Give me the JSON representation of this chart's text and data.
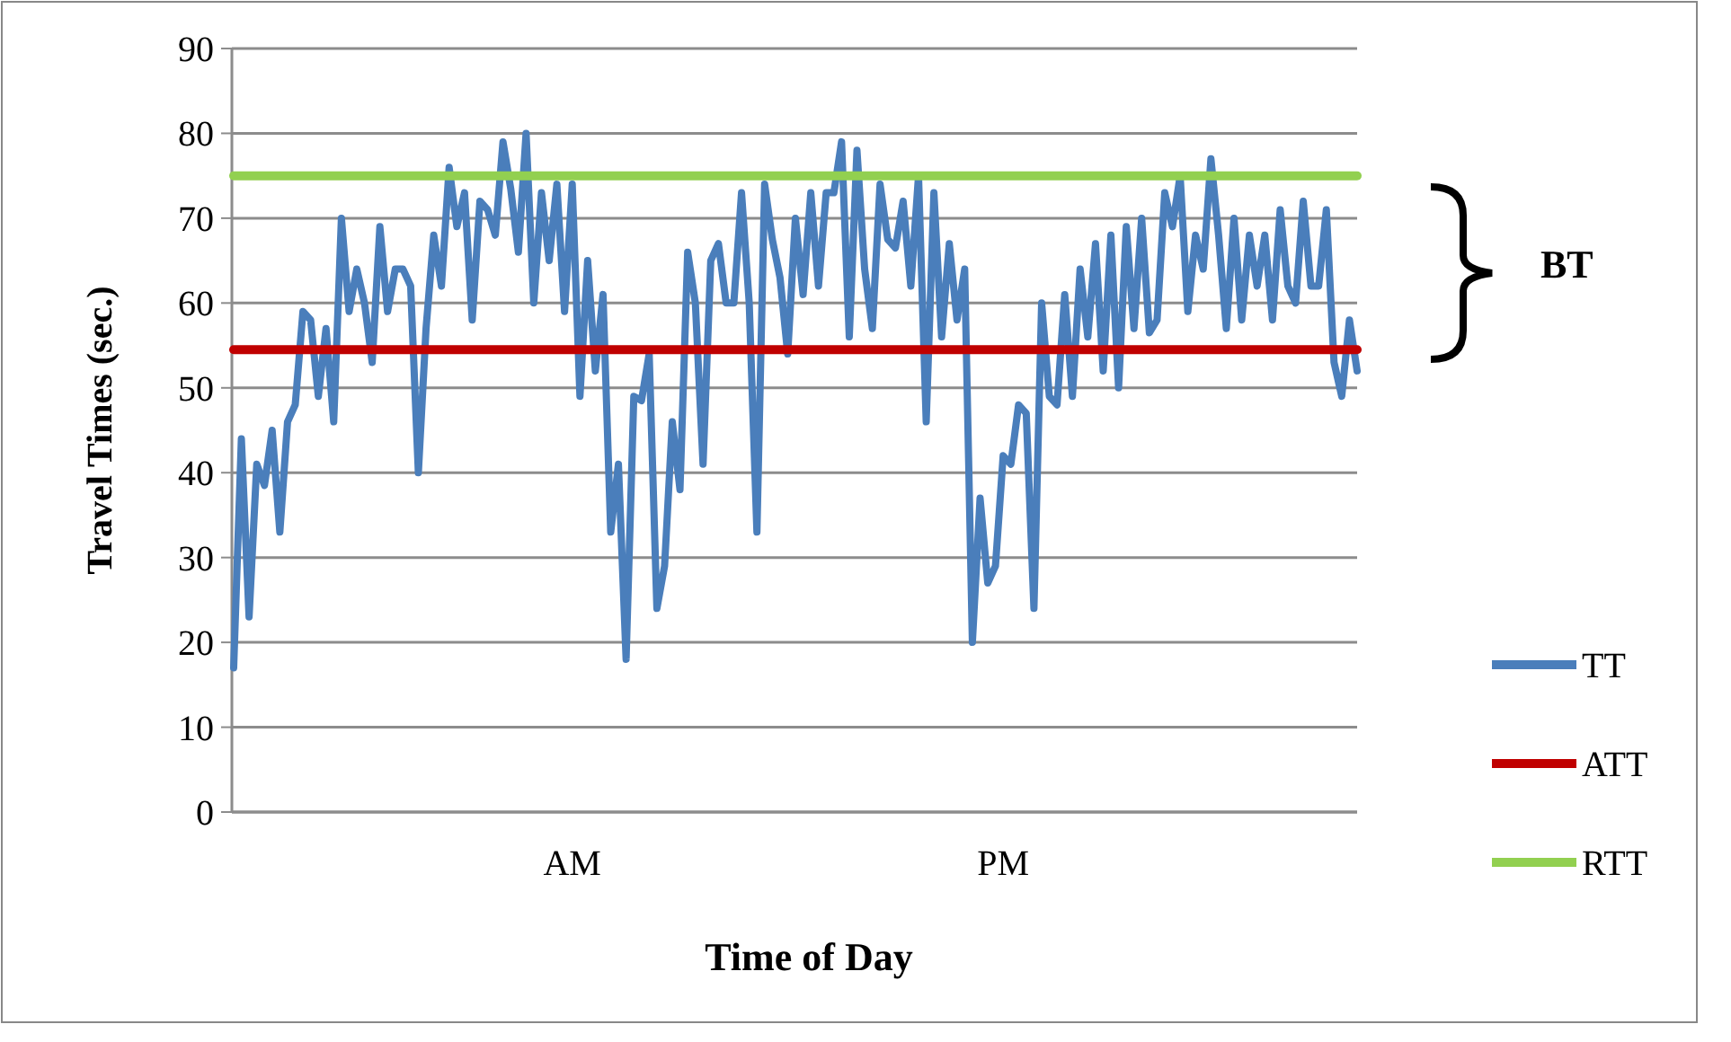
{
  "chart_data": {
    "type": "line",
    "xlabel": "Time of Day",
    "ylabel": "Travel Times (sec.)",
    "categories": [
      null,
      null,
      null,
      null,
      null,
      null,
      null,
      null,
      null,
      null,
      null,
      null,
      null,
      null,
      null,
      null,
      null,
      null,
      null,
      null,
      null,
      null,
      null,
      null,
      null,
      null,
      null,
      null,
      null,
      null,
      null,
      null,
      null,
      null,
      null,
      null,
      null,
      null,
      null,
      null,
      null,
      null,
      null,
      null,
      "AM",
      null,
      null,
      null,
      null,
      null,
      null,
      null,
      null,
      null,
      null,
      null,
      null,
      null,
      null,
      null,
      null,
      null,
      null,
      null,
      null,
      null,
      null,
      null,
      null,
      null,
      null,
      null,
      null,
      null,
      null,
      null,
      null,
      null,
      null,
      null,
      null,
      null,
      null,
      null,
      null,
      null,
      null,
      null,
      null,
      null,
      null,
      null,
      null,
      null,
      null,
      null,
      null,
      null,
      null,
      null,
      "PM",
      null,
      null,
      null,
      null,
      null,
      null,
      null,
      null,
      null,
      null,
      null,
      null,
      null,
      null,
      null,
      null,
      null,
      null,
      null,
      null,
      null,
      null,
      null,
      null,
      null,
      null,
      null,
      null,
      null,
      null,
      null,
      null,
      null,
      null,
      null,
      null,
      null,
      null,
      null,
      null,
      null,
      null,
      null,
      null,
      null,
      null
    ],
    "ylim": [
      0,
      90
    ],
    "yticks": [
      0,
      10,
      20,
      30,
      40,
      50,
      60,
      70,
      80,
      90
    ],
    "grid": "y",
    "legend": "right",
    "line_style": "solid",
    "marker": "none",
    "series": [
      {
        "name": "TT",
        "color": "#4a7ebb",
        "values": [
          17,
          44,
          23,
          41,
          38.5,
          45,
          33,
          46,
          48,
          59,
          58,
          49,
          57,
          46,
          70,
          59,
          64,
          60,
          53,
          69,
          59,
          64,
          64,
          62,
          40,
          57,
          68,
          62,
          76,
          69,
          73,
          58,
          72,
          71,
          68,
          79,
          73.5,
          66,
          80,
          60,
          73,
          65,
          74,
          59,
          74,
          49,
          65,
          52,
          61,
          33,
          41,
          18,
          49,
          48.5,
          54,
          24,
          29,
          46,
          38,
          66,
          60,
          41,
          65,
          67,
          60,
          60,
          73,
          60,
          33,
          74,
          67.5,
          63,
          54,
          70,
          61,
          73,
          62,
          73,
          73,
          79,
          56,
          78,
          64,
          57,
          74,
          67.5,
          66.5,
          72,
          62,
          75,
          46,
          73,
          56,
          67,
          58,
          64,
          20,
          37,
          27,
          29,
          42,
          41,
          48,
          47,
          24,
          60,
          49,
          48,
          61,
          49,
          64,
          56,
          67,
          52,
          68,
          50,
          69,
          57,
          70,
          56.5,
          58,
          73,
          69,
          75,
          59,
          68,
          64,
          77,
          68,
          57,
          70,
          58,
          68,
          62,
          68,
          58,
          71,
          62,
          60,
          72,
          62,
          62,
          71,
          53,
          49,
          58,
          52
        ]
      },
      {
        "name": "ATT",
        "color": "#c00000",
        "values": [
          54.5,
          54.5,
          54.5,
          54.5,
          54.5,
          54.5,
          54.5,
          54.5,
          54.5,
          54.5,
          54.5,
          54.5,
          54.5,
          54.5,
          54.5,
          54.5,
          54.5,
          54.5,
          54.5,
          54.5,
          54.5,
          54.5,
          54.5,
          54.5,
          54.5,
          54.5,
          54.5,
          54.5,
          54.5,
          54.5,
          54.5,
          54.5,
          54.5,
          54.5,
          54.5,
          54.5,
          54.5,
          54.5,
          54.5,
          54.5,
          54.5,
          54.5,
          54.5,
          54.5,
          54.5,
          54.5,
          54.5,
          54.5,
          54.5,
          54.5,
          54.5,
          54.5,
          54.5,
          54.5,
          54.5,
          54.5,
          54.5,
          54.5,
          54.5,
          54.5,
          54.5,
          54.5,
          54.5,
          54.5,
          54.5,
          54.5,
          54.5,
          54.5,
          54.5,
          54.5,
          54.5,
          54.5,
          54.5,
          54.5,
          54.5,
          54.5,
          54.5,
          54.5,
          54.5,
          54.5,
          54.5,
          54.5,
          54.5,
          54.5,
          54.5,
          54.5,
          54.5,
          54.5,
          54.5,
          54.5,
          54.5,
          54.5,
          54.5,
          54.5,
          54.5,
          54.5,
          54.5,
          54.5,
          54.5,
          54.5,
          54.5,
          54.5,
          54.5,
          54.5,
          54.5,
          54.5,
          54.5,
          54.5,
          54.5,
          54.5,
          54.5,
          54.5,
          54.5,
          54.5,
          54.5,
          54.5,
          54.5,
          54.5,
          54.5,
          54.5,
          54.5,
          54.5,
          54.5,
          54.5,
          54.5,
          54.5,
          54.5,
          54.5,
          54.5,
          54.5,
          54.5,
          54.5,
          54.5,
          54.5,
          54.5,
          54.5,
          54.5,
          54.5,
          54.5,
          54.5,
          54.5,
          54.5,
          54.5,
          54.5,
          54.5,
          54.5,
          54.5
        ]
      },
      {
        "name": "RTT",
        "color": "#92d050",
        "values": [
          75,
          75,
          75,
          75,
          75,
          75,
          75,
          75,
          75,
          75,
          75,
          75,
          75,
          75,
          75,
          75,
          75,
          75,
          75,
          75,
          75,
          75,
          75,
          75,
          75,
          75,
          75,
          75,
          75,
          75,
          75,
          75,
          75,
          75,
          75,
          75,
          75,
          75,
          75,
          75,
          75,
          75,
          75,
          75,
          75,
          75,
          75,
          75,
          75,
          75,
          75,
          75,
          75,
          75,
          75,
          75,
          75,
          75,
          75,
          75,
          75,
          75,
          75,
          75,
          75,
          75,
          75,
          75,
          75,
          75,
          75,
          75,
          75,
          75,
          75,
          75,
          75,
          75,
          75,
          75,
          75,
          75,
          75,
          75,
          75,
          75,
          75,
          75,
          75,
          75,
          75,
          75,
          75,
          75,
          75,
          75,
          75,
          75,
          75,
          75,
          75,
          75,
          75,
          75,
          75,
          75,
          75,
          75,
          75,
          75,
          75,
          75,
          75,
          75,
          75,
          75,
          75,
          75,
          75,
          75,
          75,
          75,
          75,
          75,
          75,
          75,
          75,
          75,
          75,
          75,
          75,
          75,
          75,
          75,
          75,
          75,
          75,
          75,
          75,
          75,
          75,
          75,
          75,
          75,
          75,
          75,
          75
        ]
      }
    ],
    "annotations": [
      "BT"
    ]
  }
}
